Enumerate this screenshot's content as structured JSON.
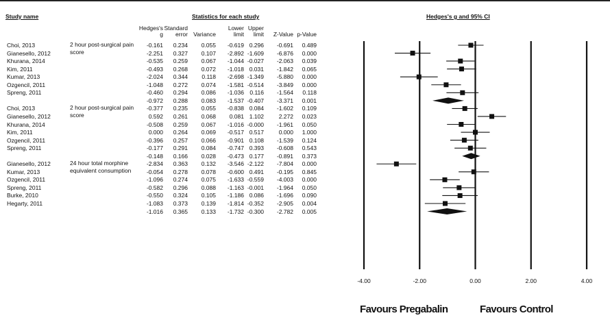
{
  "headers": {
    "study_name": "Study name",
    "stats": "Statistics for each study",
    "plot": "Hedges's g and 95% CI",
    "columns": [
      [
        "Hedges's",
        "g"
      ],
      [
        "Standard",
        "error"
      ],
      [
        "Variance"
      ],
      [
        "Lower",
        "limit"
      ],
      [
        "Upper",
        "limit"
      ],
      [
        "Z-Value"
      ],
      [
        "p-Value"
      ]
    ]
  },
  "favours": {
    "left": "Favours Pregabalin",
    "right": "Favours Control"
  },
  "rows": [
    {
      "study": "Choi, 2013",
      "g": "-0.161",
      "se": "0.234",
      "var": "0.055",
      "lower": "-0.619",
      "upper": "0.296",
      "z": "-0.691",
      "p": "0.489"
    },
    {
      "study": "Gianesello, 2012",
      "g": "-2.251",
      "se": "0.327",
      "var": "0.107",
      "lower": "-2.892",
      "upper": "-1.609",
      "z": "-6.876",
      "p": "0.000"
    },
    {
      "study": "Khurana, 2014",
      "g": "-0.535",
      "se": "0.259",
      "var": "0.067",
      "lower": "-1.044",
      "upper": "-0.027",
      "z": "-2.063",
      "p": "0.039"
    },
    {
      "study": "Kim, 2011",
      "g": "-0.493",
      "se": "0.268",
      "var": "0.072",
      "lower": "-1.018",
      "upper": "0.031",
      "z": "-1.842",
      "p": "0.065"
    },
    {
      "study": "Kumar, 2013",
      "g": "-2.024",
      "se": "0.344",
      "var": "0.118",
      "lower": "-2.698",
      "upper": "-1.349",
      "z": "-5.880",
      "p": "0.000"
    },
    {
      "study": "Ozgencil, 2011",
      "g": "-1.048",
      "se": "0.272",
      "var": "0.074",
      "lower": "-1.581",
      "upper": "-0.514",
      "z": "-3.849",
      "p": "0.000"
    },
    {
      "study": "Spreng, 2011",
      "g": "-0.460",
      "se": "0.294",
      "var": "0.086",
      "lower": "-1.036",
      "upper": "0.116",
      "z": "-1.564",
      "p": "0.118"
    },
    {
      "study": "",
      "g": "-0.972",
      "se": "0.288",
      "var": "0.083",
      "lower": "-1.537",
      "upper": "-0.407",
      "z": "-3.371",
      "p": "0.001",
      "summary": true
    },
    {
      "study": "Choi, 2013",
      "g": "-0.377",
      "se": "0.235",
      "var": "0.055",
      "lower": "-0.838",
      "upper": "0.084",
      "z": "-1.602",
      "p": "0.109"
    },
    {
      "study": "Gianesello, 2012",
      "g": "0.592",
      "se": "0.261",
      "var": "0.068",
      "lower": "0.081",
      "upper": "1.102",
      "z": "2.272",
      "p": "0.023"
    },
    {
      "study": "Khurana, 2014",
      "g": "-0.508",
      "se": "0.259",
      "var": "0.067",
      "lower": "-1.016",
      "upper": "-0.000",
      "z": "-1.961",
      "p": "0.050"
    },
    {
      "study": "Kim, 2011",
      "g": "0.000",
      "se": "0.264",
      "var": "0.069",
      "lower": "-0.517",
      "upper": "0.517",
      "z": "0.000",
      "p": "1.000"
    },
    {
      "study": "Ozgencil, 2011",
      "g": "-0.396",
      "se": "0.257",
      "var": "0.066",
      "lower": "-0.901",
      "upper": "0.108",
      "z": "-1.539",
      "p": "0.124"
    },
    {
      "study": "Spreng, 2011",
      "g": "-0.177",
      "se": "0.291",
      "var": "0.084",
      "lower": "-0.747",
      "upper": "0.393",
      "z": "-0.608",
      "p": "0.543"
    },
    {
      "study": "",
      "g": "-0.148",
      "se": "0.166",
      "var": "0.028",
      "lower": "-0.473",
      "upper": "0.177",
      "z": "-0.891",
      "p": "0.373",
      "summary": true
    },
    {
      "study": "Gianesello, 2012",
      "g": "-2.834",
      "se": "0.363",
      "var": "0.132",
      "lower": "-3.546",
      "upper": "-2.122",
      "z": "-7.804",
      "p": "0.000"
    },
    {
      "study": "Kumar, 2013",
      "g": "-0.054",
      "se": "0.278",
      "var": "0.078",
      "lower": "-0.600",
      "upper": "0.491",
      "z": "-0.195",
      "p": "0.845"
    },
    {
      "study": "Ozgencil, 2011",
      "g": "-1.096",
      "se": "0.274",
      "var": "0.075",
      "lower": "-1.633",
      "upper": "-0.559",
      "z": "-4.003",
      "p": "0.000"
    },
    {
      "study": "Spreng, 2011",
      "g": "-0.582",
      "se": "0.296",
      "var": "0.088",
      "lower": "-1.163",
      "upper": "-0.001",
      "z": "-1.964",
      "p": "0.050"
    },
    {
      "study": "Burke, 2010",
      "g": "-0.550",
      "se": "0.324",
      "var": "0.105",
      "lower": "-1.186",
      "upper": "0.086",
      "z": "-1.696",
      "p": "0.090"
    },
    {
      "study": "Hegarty, 2011",
      "g": "-1.083",
      "se": "0.373",
      "var": "0.139",
      "lower": "-1.814",
      "upper": "-0.352",
      "z": "-2.905",
      "p": "0.004"
    },
    {
      "study": "",
      "g": "-1.016",
      "se": "0.365",
      "var": "0.133",
      "lower": "-1.732",
      "upper": "-0.300",
      "z": "-2.782",
      "p": "0.005",
      "summary": true
    }
  ],
  "groups": [
    {
      "label": "2 hour post-surgical pain score",
      "first_row": 0
    },
    {
      "label": "2 hour post-surgical pain score",
      "first_row": 8
    },
    {
      "label": "24 hour total morphine equivalent consumption",
      "first_row": 15
    }
  ],
  "chart_data": {
    "type": "forest",
    "title": "Hedges's g and 95% CI",
    "xlim": [
      -4,
      4
    ],
    "ticks": [
      -4,
      -2,
      0,
      2,
      4
    ],
    "tick_labels": [
      "-4.00",
      "-2.00",
      "0.00",
      "2.00",
      "4.00"
    ],
    "vertical_lines_at": [
      -4,
      -2,
      0,
      2,
      4
    ],
    "points": [
      {
        "g": -0.161,
        "lower": -0.619,
        "upper": 0.296
      },
      {
        "g": -2.251,
        "lower": -2.892,
        "upper": -1.609
      },
      {
        "g": -0.535,
        "lower": -1.044,
        "upper": -0.027
      },
      {
        "g": -0.493,
        "lower": -1.018,
        "upper": 0.031
      },
      {
        "g": -2.024,
        "lower": -2.698,
        "upper": -1.349
      },
      {
        "g": -1.048,
        "lower": -1.581,
        "upper": -0.514
      },
      {
        "g": -0.46,
        "lower": -1.036,
        "upper": 0.116
      },
      {
        "g": -0.972,
        "lower": -1.537,
        "upper": -0.407,
        "summary": true
      },
      {
        "g": -0.377,
        "lower": -0.838,
        "upper": 0.084
      },
      {
        "g": 0.592,
        "lower": 0.081,
        "upper": 1.102
      },
      {
        "g": -0.508,
        "lower": -1.016,
        "upper": -0.0
      },
      {
        "g": 0.0,
        "lower": -0.517,
        "upper": 0.517
      },
      {
        "g": -0.396,
        "lower": -0.901,
        "upper": 0.108
      },
      {
        "g": -0.177,
        "lower": -0.747,
        "upper": 0.393
      },
      {
        "g": -0.148,
        "lower": -0.473,
        "upper": 0.177,
        "summary": true
      },
      {
        "g": -2.834,
        "lower": -3.546,
        "upper": -2.122
      },
      {
        "g": -0.054,
        "lower": -0.6,
        "upper": 0.491
      },
      {
        "g": -1.096,
        "lower": -1.633,
        "upper": -0.559
      },
      {
        "g": -0.582,
        "lower": -1.163,
        "upper": -0.001
      },
      {
        "g": -0.55,
        "lower": -1.186,
        "upper": 0.086
      },
      {
        "g": -1.083,
        "lower": -1.814,
        "upper": -0.352
      },
      {
        "g": -1.016,
        "lower": -1.732,
        "upper": -0.3,
        "summary": true
      }
    ]
  }
}
